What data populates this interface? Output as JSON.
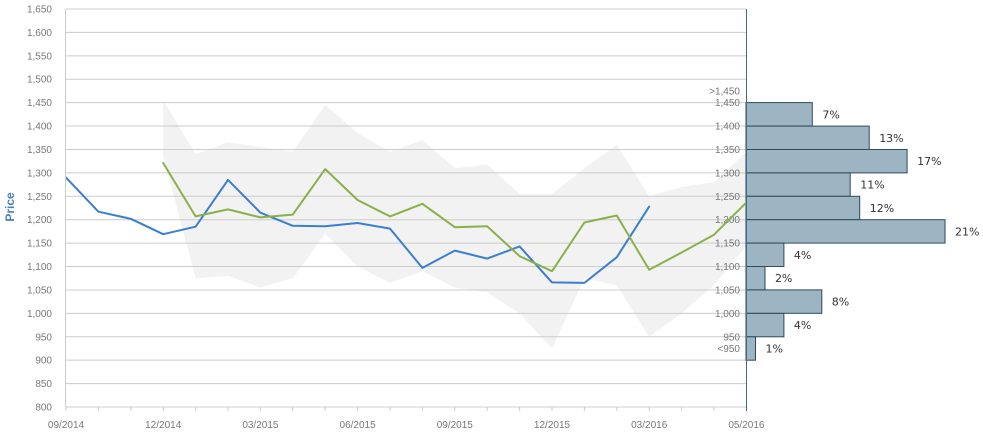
{
  "chart_data": {
    "type": "line",
    "ylabel": "Price",
    "xlabel": "",
    "ylim": [
      800,
      1650
    ],
    "yticks": [
      800,
      850,
      900,
      950,
      1000,
      1050,
      1100,
      1150,
      1200,
      1250,
      1300,
      1350,
      1400,
      1450,
      1500,
      1550,
      1600,
      1650
    ],
    "ytick_labels": [
      "800",
      "850",
      "900",
      "950",
      "1,000",
      "1,050",
      "1,100",
      "1,150",
      "1,200",
      "1,250",
      "1,300",
      "1,350",
      "1,400",
      "1,450",
      "1,500",
      "1,550",
      "1,600",
      "1,650"
    ],
    "x_tick_labels": [
      "09/2014",
      "12/2014",
      "03/2015",
      "06/2015",
      "09/2015",
      "12/2015",
      "03/2016",
      "05/2016"
    ],
    "x_tick_months": [
      0,
      3,
      6,
      9,
      12,
      15,
      18,
      21
    ],
    "grid": true,
    "legend": "none",
    "colors": {
      "series_a": "#3a7fcf",
      "series_b": "#8ab04a",
      "band": "#f2f2f2",
      "hist_bar": "#9db4c2",
      "hist_edge": "#2e4a5c",
      "axis_label": "#4a7fc0"
    },
    "series": [
      {
        "months": [
          0,
          1,
          2,
          3,
          4,
          5,
          6,
          7,
          8,
          9,
          10,
          11,
          12,
          13,
          14,
          15,
          16,
          17,
          18
        ],
        "values": [
          1290,
          1217,
          1202,
          1169,
          1185,
          1285,
          1215,
          1187,
          1186,
          1193,
          1181,
          1097,
          1134,
          1117,
          1143,
          1066,
          1065,
          1120,
          1228
        ]
      },
      {
        "months": [
          3,
          4,
          5,
          6,
          7,
          8,
          9,
          10,
          11,
          12,
          13,
          14,
          15,
          16,
          17,
          18,
          19,
          20,
          21
        ],
        "values": [
          1321,
          1207,
          1222,
          1205,
          1211,
          1308,
          1242,
          1207,
          1234,
          1184,
          1186,
          1122,
          1090,
          1194,
          1209,
          1093,
          1130,
          1168,
          1237
        ]
      }
    ],
    "band": {
      "months": [
        3,
        4,
        5,
        6,
        7,
        8,
        9,
        10,
        11,
        12,
        13,
        14,
        15,
        16,
        17,
        18,
        19,
        20,
        21
      ],
      "upper": [
        1455,
        1340,
        1365,
        1355,
        1345,
        1445,
        1385,
        1345,
        1370,
        1310,
        1318,
        1255,
        1255,
        1310,
        1360,
        1250,
        1270,
        1280,
        1345
      ],
      "lower": [
        1335,
        1075,
        1080,
        1055,
        1075,
        1170,
        1100,
        1065,
        1090,
        1055,
        1045,
        1000,
        925,
        1075,
        1060,
        950,
        1000,
        1060,
        1145
      ]
    },
    "distribution": {
      "bin_labels": [
        ">1,450",
        "1,450",
        "1,400",
        "1,350",
        "1,300",
        "1,250",
        "1,200",
        "1,150",
        "1,100",
        "1,050",
        "1,000",
        "950",
        "<950"
      ],
      "bins": [
        {
          "label": "7%",
          "value": 7
        },
        {
          "label": "13%",
          "value": 13
        },
        {
          "label": "17%",
          "value": 17
        },
        {
          "label": "11%",
          "value": 11
        },
        {
          "label": "12%",
          "value": 12
        },
        {
          "label": "21%",
          "value": 21
        },
        {
          "label": "4%",
          "value": 4
        },
        {
          "label": "2%",
          "value": 2
        },
        {
          "label": "8%",
          "value": 8
        },
        {
          "label": "4%",
          "value": 4
        },
        {
          "label": "1%",
          "value": 1
        }
      ]
    }
  }
}
